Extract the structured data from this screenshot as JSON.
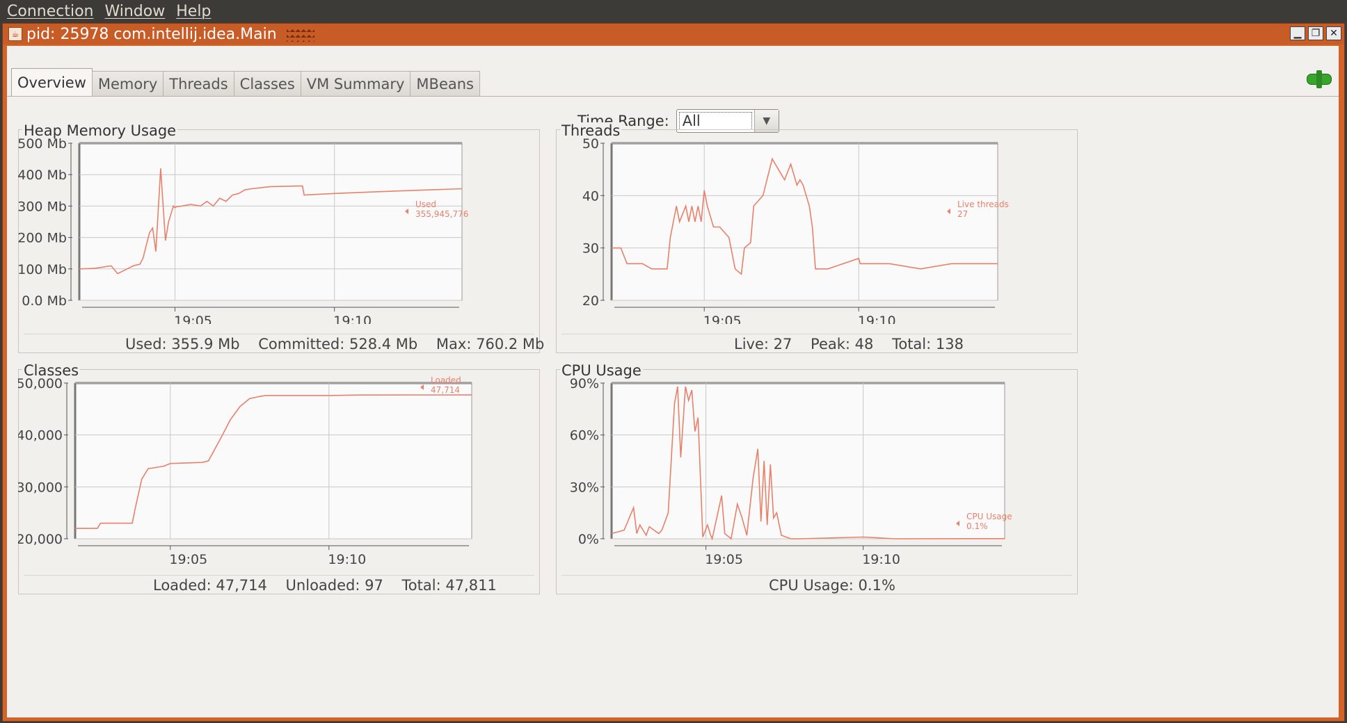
{
  "menubar": {
    "items": [
      "Connection",
      "Window",
      "Help"
    ]
  },
  "window": {
    "title": "pid: 25978 com.intellij.idea.Main"
  },
  "tabs": [
    "Overview",
    "Memory",
    "Threads",
    "Classes",
    "VM Summary",
    "MBeans"
  ],
  "active_tab": 0,
  "time_range": {
    "label": "Time Range:",
    "value": "All"
  },
  "panels": [
    {
      "title": "Heap Memory Usage",
      "stats": "Used: 355.9 Mb    Committed: 528.4 Mb    Max: 760.2 Mb"
    },
    {
      "title": "Threads",
      "stats": "Live: 27    Peak: 48    Total: 138"
    },
    {
      "title": "Classes",
      "stats": "Loaded: 47,714    Unloaded: 97    Total: 47,811"
    },
    {
      "title": "CPU Usage",
      "stats": "CPU Usage: 0.1%"
    }
  ],
  "colors": {
    "series": "#e8806a",
    "grid": "#c8c8c8",
    "plot_bg": "#fafafa"
  },
  "chart_data": [
    {
      "type": "line",
      "xlim": [
        19.02,
        19.14
      ],
      "ylim": [
        0,
        500
      ],
      "yticks": [
        0,
        100,
        200,
        300,
        400,
        500
      ],
      "ytick_labels": [
        "0.0 Mb",
        "100 Mb",
        "200 Mb",
        "300 Mb",
        "400 Mb",
        "500 Mb"
      ],
      "xticks": [
        19.05,
        19.1
      ],
      "xtick_labels": [
        "19:05",
        "19:10"
      ],
      "series": [
        {
          "name": "Used",
          "value_label": "355,945,776",
          "x": [
            19.02,
            19.025,
            19.03,
            19.032,
            19.035,
            19.037,
            19.039,
            19.04,
            19.042,
            19.043,
            19.044,
            19.0455,
            19.047,
            19.048,
            19.0495,
            19.05,
            19.0505,
            19.052,
            19.055,
            19.058,
            19.06,
            19.062,
            19.064,
            19.066,
            19.068,
            19.07,
            19.072,
            19.074,
            19.08,
            19.09,
            19.0905,
            19.1,
            19.12,
            19.14
          ],
          "y": [
            100,
            102,
            110,
            85,
            100,
            110,
            115,
            135,
            215,
            230,
            155,
            420,
            190,
            250,
            300,
            295,
            298,
            300,
            305,
            300,
            315,
            300,
            325,
            315,
            335,
            340,
            352,
            355,
            362,
            364,
            335,
            340,
            348,
            355
          ]
        }
      ]
    },
    {
      "type": "line",
      "xlim": [
        19.02,
        19.145
      ],
      "ylim": [
        20,
        50
      ],
      "yticks": [
        20,
        30,
        40,
        50
      ],
      "ytick_labels": [
        "20",
        "30",
        "40",
        "50"
      ],
      "xticks": [
        19.05,
        19.1
      ],
      "xtick_labels": [
        "19:05",
        "19:10"
      ],
      "series": [
        {
          "name": "Live threads",
          "value_label": "27",
          "x": [
            19.02,
            19.023,
            19.025,
            19.03,
            19.033,
            19.035,
            19.038,
            19.039,
            19.041,
            19.042,
            19.044,
            19.045,
            19.046,
            19.047,
            19.048,
            19.049,
            19.05,
            19.051,
            19.053,
            19.055,
            19.058,
            19.06,
            19.062,
            19.063,
            19.065,
            19.066,
            19.069,
            19.072,
            19.074,
            19.076,
            19.078,
            19.079,
            19.08,
            19.081,
            19.082,
            19.084,
            19.085,
            19.086,
            19.087,
            19.0875,
            19.09,
            19.1,
            19.1005,
            19.11,
            19.12,
            19.13,
            19.145
          ],
          "y": [
            30,
            30,
            27,
            27,
            26,
            26,
            26,
            32,
            38,
            35,
            38,
            35,
            38,
            35,
            38,
            35,
            41,
            38,
            34,
            34,
            32,
            26,
            25,
            30,
            31,
            38,
            40,
            47,
            45,
            43,
            46,
            44,
            42,
            43,
            42,
            38,
            34,
            26,
            26,
            26,
            26,
            28,
            27,
            27,
            26,
            27,
            27
          ]
        }
      ]
    },
    {
      "type": "line",
      "xlim": [
        19.02,
        19.145
      ],
      "ylim": [
        20000,
        50000
      ],
      "yticks": [
        20000,
        30000,
        40000,
        50000
      ],
      "ytick_labels": [
        "20,000",
        "30,000",
        "40,000",
        "50,000"
      ],
      "xticks": [
        19.05,
        19.1
      ],
      "xtick_labels": [
        "19:05",
        "19:10"
      ],
      "series": [
        {
          "name": "Loaded",
          "value_label": "47,714",
          "x": [
            19.02,
            19.027,
            19.028,
            19.038,
            19.039,
            19.041,
            19.043,
            19.046,
            19.048,
            19.05,
            19.06,
            19.062,
            19.066,
            19.069,
            19.072,
            19.075,
            19.078,
            19.08,
            19.1,
            19.11,
            19.145
          ],
          "y": [
            22000,
            22000,
            23000,
            23000,
            26000,
            31500,
            33500,
            33800,
            34000,
            34500,
            34700,
            35000,
            39500,
            43000,
            45500,
            47000,
            47400,
            47600,
            47600,
            47700,
            47714
          ]
        }
      ]
    },
    {
      "type": "line",
      "xlim": [
        19.02,
        19.145
      ],
      "ylim": [
        0,
        90
      ],
      "yticks": [
        0,
        30,
        60,
        90
      ],
      "ytick_labels": [
        "0%",
        "30%",
        "60%",
        "90%"
      ],
      "xticks": [
        19.05,
        19.1
      ],
      "xtick_labels": [
        "19:05",
        "19:10"
      ],
      "series": [
        {
          "name": "CPU Usage",
          "value_label": "0.1%",
          "x": [
            19.02,
            19.024,
            19.027,
            19.028,
            19.029,
            19.031,
            19.032,
            19.035,
            19.036,
            19.038,
            19.04,
            19.041,
            19.042,
            19.0435,
            19.0445,
            19.0455,
            19.0465,
            19.0475,
            19.049,
            19.0505,
            19.0515,
            19.052,
            19.055,
            19.056,
            19.058,
            19.06,
            19.0615,
            19.063,
            19.065,
            19.0665,
            19.0675,
            19.0685,
            19.0695,
            19.0705,
            19.0715,
            19.0725,
            19.074,
            19.0755,
            19.077,
            19.08,
            19.1,
            19.11,
            19.145
          ],
          "y": [
            3,
            5,
            18,
            3,
            8,
            2,
            7,
            3,
            5,
            15,
            78,
            88,
            47,
            88,
            80,
            86,
            62,
            70,
            1,
            8,
            2,
            0,
            25,
            3,
            0,
            20,
            12,
            2,
            35,
            52,
            10,
            45,
            8,
            43,
            12,
            15,
            2,
            1,
            0,
            0,
            1,
            0,
            0.1
          ]
        }
      ]
    }
  ]
}
